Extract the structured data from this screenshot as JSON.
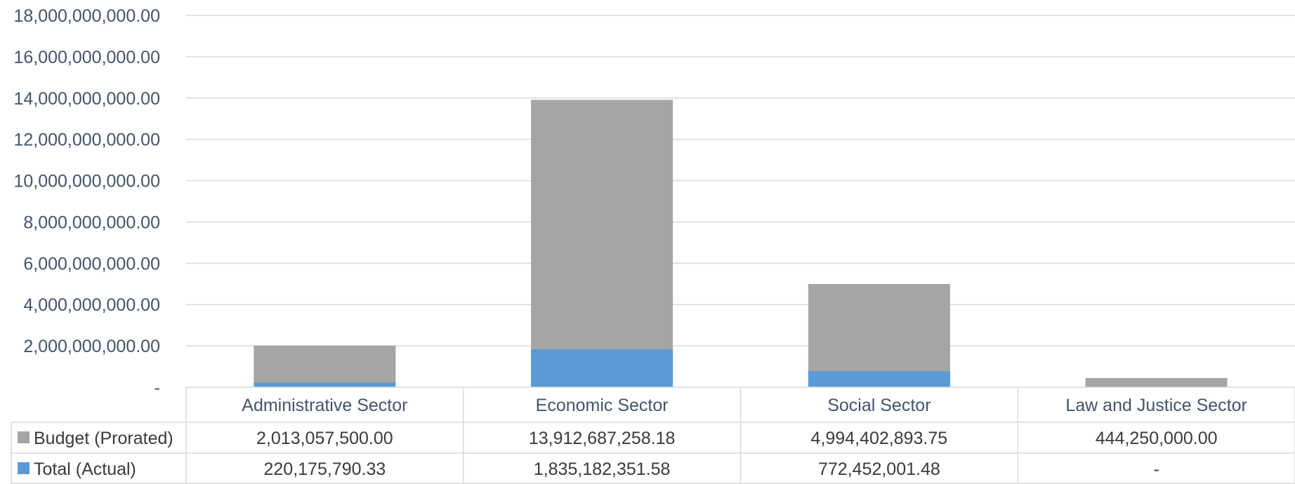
{
  "chart_data": {
    "type": "bar",
    "stacked": "overlap",
    "y_ticks": [
      "-",
      "2,000,000,000.00",
      "4,000,000,000.00",
      "6,000,000,000.00",
      "8,000,000,000.00",
      "10,000,000,000.00",
      "12,000,000,000.00",
      "14,000,000,000.00",
      "16,000,000,000.00",
      "18,000,000,000.00"
    ],
    "ylim": [
      0,
      18000000000
    ],
    "grid": true,
    "categories": [
      "Administrative Sector",
      "Economic Sector",
      "Social Sector",
      "Law and Justice Sector"
    ],
    "series": [
      {
        "name": "Budget (Prorated)",
        "color": "#a5a5a5",
        "values": [
          2013057500.0,
          13912687258.18,
          4994402893.75,
          444250000.0
        ],
        "labels": [
          "2,013,057,500.00",
          "13,912,687,258.18",
          "4,994,402,893.75",
          "444,250,000.00"
        ]
      },
      {
        "name": "Total (Actual)",
        "color": "#5b9bd5",
        "values": [
          220175790.33,
          1835182351.58,
          772452001.48,
          0
        ],
        "labels": [
          "220,175,790.33",
          "1,835,182,351.58",
          "772,452,001.48",
          "-"
        ]
      }
    ],
    "legend": "data-table"
  }
}
